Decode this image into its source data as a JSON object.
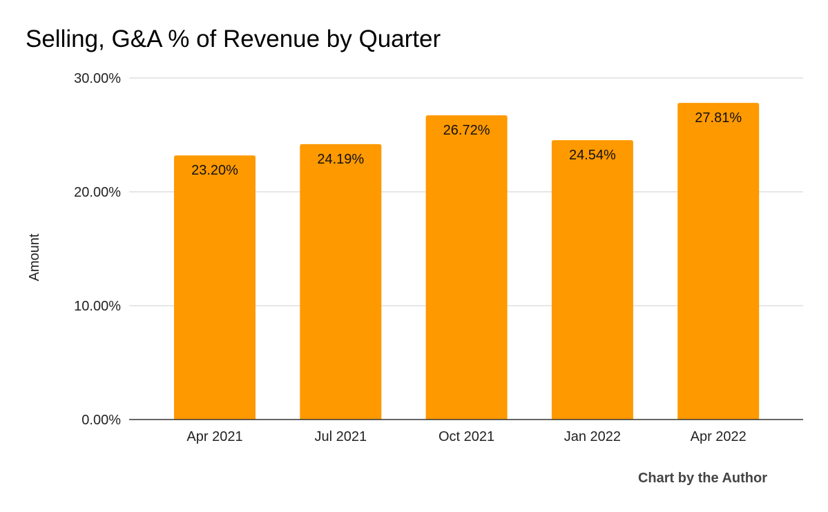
{
  "chart_data": {
    "type": "bar",
    "title": "Selling, G&A % of Revenue by Quarter",
    "xlabel": "",
    "ylabel": "Amount",
    "categories": [
      "Apr 2021",
      "Jul 2021",
      "Oct 2021",
      "Jan 2022",
      "Apr 2022"
    ],
    "values": [
      23.2,
      24.19,
      26.72,
      24.54,
      27.81
    ],
    "data_labels": [
      "23.20%",
      "24.19%",
      "26.72%",
      "24.54%",
      "27.81%"
    ],
    "ylim": [
      0,
      30
    ],
    "yticks": [
      0,
      10,
      20,
      30
    ],
    "ytick_labels": [
      "0.00%",
      "10.00%",
      "20.00%",
      "30.00%"
    ],
    "grid": true,
    "legend": "none",
    "bar_color": "#FF9900",
    "credit": "Chart by the Author"
  }
}
